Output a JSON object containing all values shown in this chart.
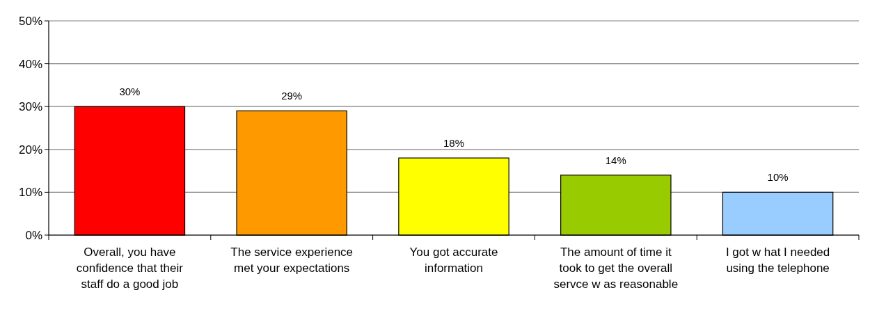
{
  "chart_data": {
    "type": "bar",
    "categories": [
      "Overall, you have confidence that their staff do a good job",
      "The service experience met your expectations",
      "You got accurate information",
      "The amount of time it took to get the overall servce w as reasonable",
      "I got w hat I needed using the telephone"
    ],
    "values": [
      30,
      29,
      18,
      14,
      10
    ],
    "colors": [
      "#ff0000",
      "#ff9900",
      "#ffff00",
      "#99cc00",
      "#99ccff"
    ],
    "value_labels": [
      "30%",
      "29%",
      "18%",
      "14%",
      "10%"
    ],
    "ylim": [
      0,
      50
    ],
    "yticks": [
      {
        "value": 0,
        "label": "0%"
      },
      {
        "value": 10,
        "label": "10%"
      },
      {
        "value": 20,
        "label": "20%"
      },
      {
        "value": 30,
        "label": "30%"
      },
      {
        "value": 40,
        "label": "40%"
      },
      {
        "value": 50,
        "label": "50%"
      }
    ],
    "grid": "y"
  }
}
